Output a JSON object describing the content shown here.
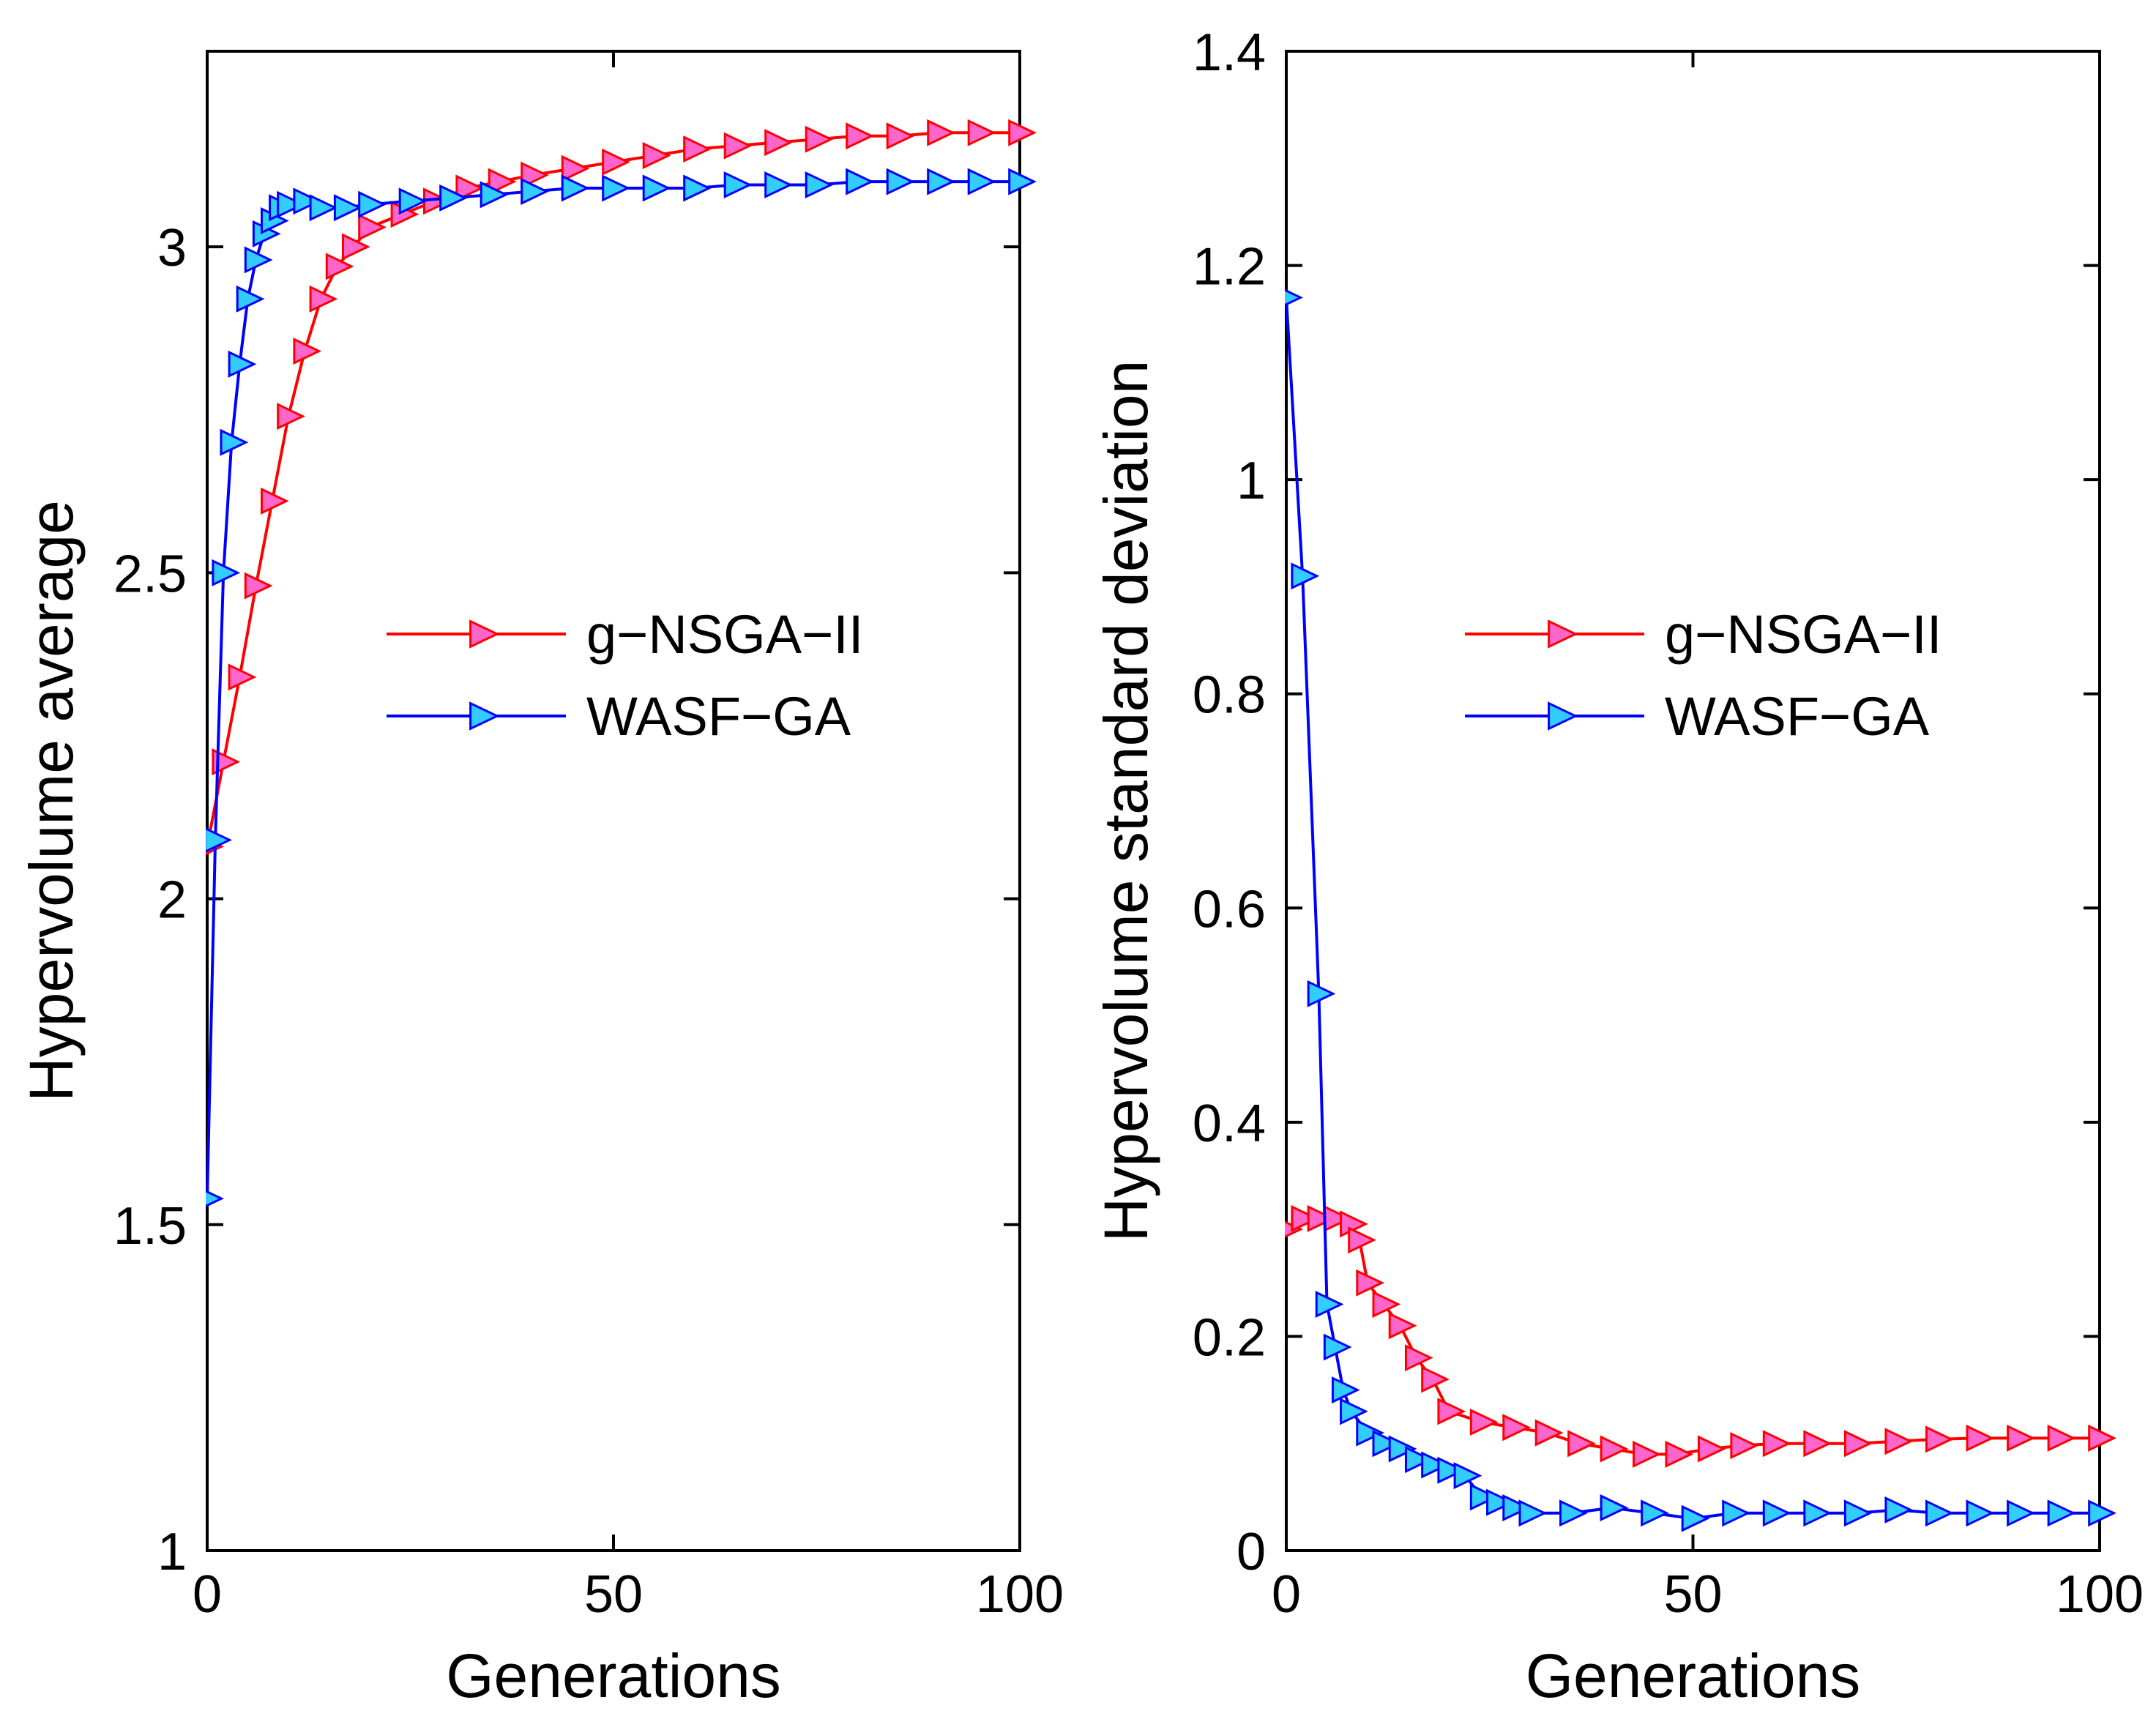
{
  "chart_data": [
    {
      "type": "line",
      "title": "",
      "xlabel": "Generations",
      "ylabel": "Hypervolume average",
      "xlim": [
        0,
        100
      ],
      "ylim": [
        1,
        3.3
      ],
      "xticks": [
        0,
        50,
        100
      ],
      "yticks": [
        1,
        1.5,
        2,
        2.5,
        3
      ],
      "xtick_labels": [
        "0",
        "50",
        "100"
      ],
      "ytick_labels": [
        "1",
        "1.5",
        "2",
        "2.5",
        "3"
      ],
      "grid": false,
      "legend_position": "center-right",
      "marker": "right-pointing-triangle",
      "series": [
        {
          "name": "g−NSGA−II",
          "line_color": "#ff0000",
          "marker_fill": "#ff66cc",
          "x": [
            0,
            2,
            4,
            6,
            8,
            10,
            12,
            14,
            16,
            18,
            20,
            24,
            28,
            32,
            36,
            40,
            45,
            50,
            55,
            60,
            65,
            70,
            75,
            80,
            85,
            90,
            95,
            100
          ],
          "y": [
            2.08,
            2.21,
            2.34,
            2.48,
            2.61,
            2.74,
            2.84,
            2.92,
            2.97,
            3.0,
            3.03,
            3.05,
            3.07,
            3.09,
            3.1,
            3.11,
            3.12,
            3.13,
            3.14,
            3.15,
            3.155,
            3.16,
            3.165,
            3.17,
            3.17,
            3.175,
            3.175,
            3.175
          ]
        },
        {
          "name": "WASF−GA",
          "line_color": "#0000ff",
          "marker_fill": "#33ccff",
          "x": [
            0,
            1,
            2,
            3,
            4,
            5,
            6,
            7,
            8,
            9,
            10,
            12,
            14,
            17,
            20,
            25,
            30,
            35,
            40,
            45,
            50,
            55,
            60,
            65,
            70,
            75,
            80,
            85,
            90,
            95,
            100
          ],
          "y": [
            1.54,
            2.09,
            2.5,
            2.7,
            2.82,
            2.92,
            2.98,
            3.02,
            3.04,
            3.06,
            3.065,
            3.07,
            3.06,
            3.06,
            3.065,
            3.07,
            3.075,
            3.08,
            3.085,
            3.09,
            3.09,
            3.09,
            3.09,
            3.095,
            3.095,
            3.095,
            3.1,
            3.1,
            3.1,
            3.1,
            3.1
          ]
        }
      ]
    },
    {
      "type": "line",
      "title": "",
      "xlabel": "Generations",
      "ylabel": "Hypervolume standard deviation",
      "xlim": [
        0,
        100
      ],
      "ylim": [
        0,
        1.4
      ],
      "xticks": [
        0,
        50,
        100
      ],
      "yticks": [
        0,
        0.2,
        0.4,
        0.6,
        0.8,
        1,
        1.2,
        1.4
      ],
      "xtick_labels": [
        "0",
        "50",
        "100"
      ],
      "ytick_labels": [
        "0",
        "0.2",
        "0.4",
        "0.6",
        "0.8",
        "1",
        "1.2",
        "1.4"
      ],
      "grid": false,
      "legend_position": "center-right",
      "marker": "right-pointing-triangle",
      "series": [
        {
          "name": "g−NSGA−II",
          "line_color": "#ff0000",
          "marker_fill": "#ff66cc",
          "x": [
            0,
            2,
            4,
            6,
            8,
            9,
            10,
            12,
            14,
            16,
            18,
            20,
            24,
            28,
            32,
            36,
            40,
            44,
            48,
            52,
            56,
            60,
            65,
            70,
            75,
            80,
            85,
            90,
            95,
            100
          ],
          "y": [
            0.3,
            0.31,
            0.31,
            0.31,
            0.305,
            0.29,
            0.25,
            0.23,
            0.21,
            0.18,
            0.16,
            0.13,
            0.12,
            0.115,
            0.11,
            0.1,
            0.095,
            0.09,
            0.09,
            0.095,
            0.098,
            0.1,
            0.1,
            0.1,
            0.102,
            0.104,
            0.105,
            0.105,
            0.105,
            0.105
          ]
        },
        {
          "name": "WASF−GA",
          "line_color": "#0000ff",
          "marker_fill": "#33ccff",
          "x": [
            0,
            2,
            4,
            5,
            6,
            7,
            8,
            10,
            12,
            14,
            16,
            18,
            20,
            22,
            24,
            26,
            28,
            30,
            35,
            40,
            45,
            50,
            55,
            60,
            65,
            70,
            75,
            80,
            85,
            90,
            95,
            100
          ],
          "y": [
            1.17,
            0.91,
            0.52,
            0.23,
            0.19,
            0.15,
            0.13,
            0.11,
            0.1,
            0.095,
            0.085,
            0.08,
            0.075,
            0.07,
            0.05,
            0.045,
            0.04,
            0.035,
            0.035,
            0.04,
            0.035,
            0.03,
            0.035,
            0.035,
            0.035,
            0.035,
            0.038,
            0.035,
            0.035,
            0.035,
            0.035,
            0.035
          ]
        }
      ]
    }
  ]
}
